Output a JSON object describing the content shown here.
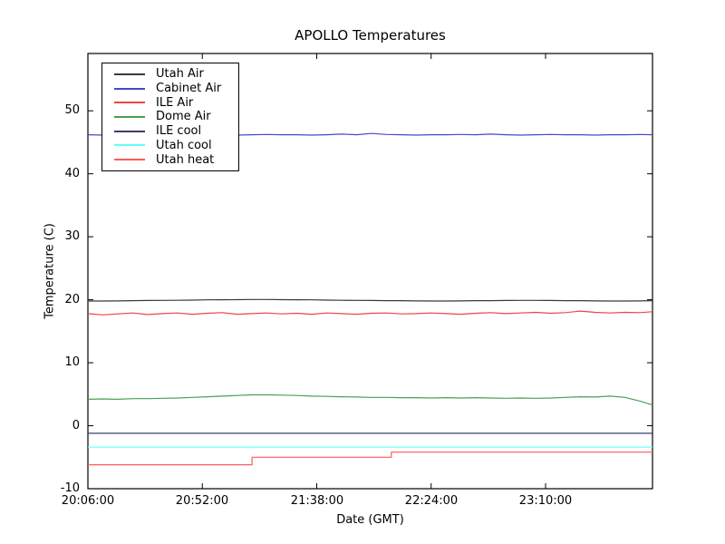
{
  "figure": {
    "title": "APOLLO Temperatures",
    "xlabel": "Date (GMT)",
    "ylabel": "Temperature (C)"
  },
  "chart_data": {
    "type": "line",
    "title": "APOLLO Temperatures",
    "xlabel": "Date (GMT)",
    "ylabel": "Temperature (C)",
    "x_unit": "minutes after 20:06:00 GMT",
    "t_max": 227,
    "ylim": [
      -10,
      59.1
    ],
    "grid": false,
    "legend_position": "upper left",
    "xtick_labels": [
      "20:06:00",
      "20:52:00",
      "21:38:00",
      "22:24:00",
      "23:10:00"
    ],
    "xtick_t": [
      0,
      46,
      92,
      138,
      184
    ],
    "ytick_labels": [
      "-10",
      "0",
      "10",
      "20",
      "30",
      "40",
      "50"
    ],
    "ytick_values": [
      -10,
      0,
      10,
      20,
      30,
      40,
      50
    ],
    "shared_t": [
      0,
      6,
      12,
      18,
      24,
      30,
      36,
      42,
      48,
      54,
      60,
      66,
      72,
      78,
      84,
      90,
      96,
      102,
      108,
      114,
      120,
      126,
      132,
      138,
      144,
      150,
      156,
      162,
      168,
      174,
      180,
      186,
      192,
      198,
      204,
      210,
      216,
      222,
      227
    ],
    "series": [
      {
        "name": "Utah Air",
        "color": "#3a3a3a",
        "t": "shared",
        "v": [
          19.8,
          19.8,
          19.82,
          19.85,
          19.88,
          19.9,
          19.92,
          19.95,
          19.98,
          20.0,
          20.02,
          20.05,
          20.05,
          20.02,
          20.0,
          19.98,
          19.95,
          19.92,
          19.9,
          19.88,
          19.85,
          19.85,
          19.82,
          19.8,
          19.8,
          19.82,
          19.85,
          19.85,
          19.88,
          19.9,
          19.9,
          19.88,
          19.85,
          19.85,
          19.82,
          19.8,
          19.8,
          19.82,
          19.85
        ]
      },
      {
        "name": "Cabinet Air",
        "color": "#4848d0",
        "t": "shared",
        "v": [
          46.2,
          46.15,
          46.2,
          46.25,
          46.2,
          46.15,
          46.2,
          46.2,
          46.25,
          46.2,
          46.15,
          46.2,
          46.25,
          46.2,
          46.2,
          46.15,
          46.2,
          46.3,
          46.2,
          46.4,
          46.25,
          46.2,
          46.15,
          46.2,
          46.2,
          46.25,
          46.2,
          46.3,
          46.2,
          46.15,
          46.2,
          46.25,
          46.2,
          46.2,
          46.15,
          46.2,
          46.2,
          46.25,
          46.2
        ]
      },
      {
        "name": "ILE Air",
        "color": "#ee4444",
        "t": "shared",
        "v": [
          17.8,
          17.6,
          17.75,
          17.9,
          17.65,
          17.8,
          17.9,
          17.7,
          17.85,
          17.95,
          17.7,
          17.8,
          17.9,
          17.75,
          17.85,
          17.7,
          17.9,
          17.8,
          17.7,
          17.85,
          17.9,
          17.75,
          17.8,
          17.9,
          17.8,
          17.7,
          17.85,
          17.95,
          17.8,
          17.9,
          18.0,
          17.85,
          17.95,
          18.2,
          18.0,
          17.9,
          18.0,
          17.95,
          18.1
        ]
      },
      {
        "name": "Dome Air",
        "color": "#4aa052",
        "t": "shared",
        "v": [
          4.2,
          4.25,
          4.2,
          4.3,
          4.3,
          4.35,
          4.4,
          4.5,
          4.6,
          4.7,
          4.8,
          4.9,
          4.9,
          4.85,
          4.8,
          4.7,
          4.65,
          4.6,
          4.55,
          4.5,
          4.5,
          4.45,
          4.45,
          4.4,
          4.45,
          4.4,
          4.45,
          4.4,
          4.35,
          4.4,
          4.35,
          4.4,
          4.5,
          4.6,
          4.55,
          4.7,
          4.5,
          3.9,
          3.3
        ]
      },
      {
        "name": "ILE cool",
        "color": "#3c3c6e",
        "t": [
          0,
          227
        ],
        "v": [
          -1.2,
          -1.2
        ]
      },
      {
        "name": "Utah cool",
        "color": "#63ffff",
        "t": [
          0,
          227
        ],
        "v": [
          -3.4,
          -3.4
        ]
      },
      {
        "name": "Utah heat",
        "color": "#ff5c5c",
        "t": [
          0,
          66,
          66,
          122,
          122,
          227
        ],
        "v": [
          -6.2,
          -6.2,
          -5.0,
          -5.0,
          -4.2,
          -4.2
        ]
      }
    ]
  }
}
